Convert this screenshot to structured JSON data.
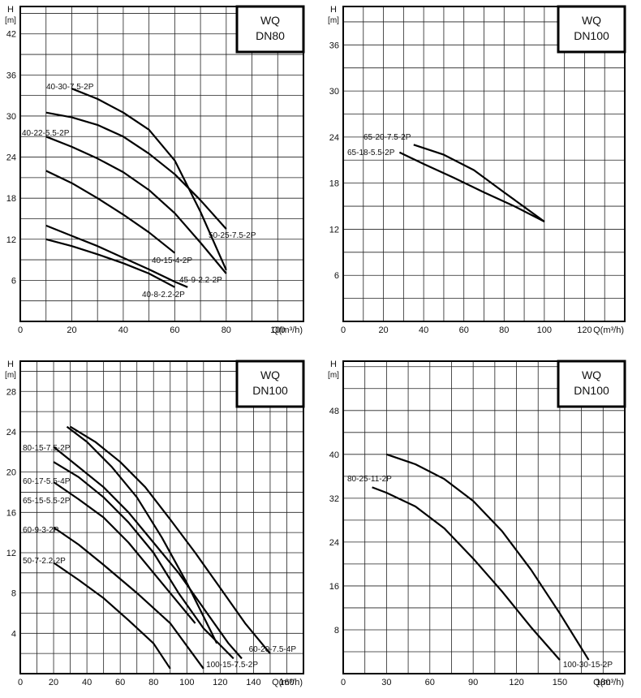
{
  "chart_data": [
    {
      "type": "line",
      "box_title": [
        "WQ",
        "DN80"
      ],
      "ylabel": [
        "H",
        "[m]"
      ],
      "xlabel": "Q(m³/h)",
      "xlim": [
        0,
        110
      ],
      "ylim": [
        0,
        46
      ],
      "x_ticks": [
        0,
        20,
        40,
        60,
        80,
        100
      ],
      "y_ticks": [
        6,
        12,
        18,
        24,
        30,
        36,
        42
      ],
      "series": [
        {
          "name": "40-30-7.5-2P",
          "points": [
            [
              20,
              34
            ],
            [
              30,
              32.5
            ],
            [
              40,
              30.5
            ],
            [
              50,
              28
            ],
            [
              60,
              23.5
            ],
            [
              70,
              16
            ],
            [
              80,
              7.5
            ]
          ]
        },
        {
          "name": "40-22-5.5-2P",
          "points": [
            [
              10,
              30.5
            ],
            [
              20,
              29.8
            ],
            [
              30,
              28.7
            ],
            [
              40,
              27
            ],
            [
              50,
              24.5
            ],
            [
              60,
              21.5
            ],
            [
              70,
              17.7
            ],
            [
              80,
              13.5
            ]
          ]
        },
        {
          "name": "50-25-7.5-2P",
          "points": [
            [
              10,
              27
            ],
            [
              20,
              25.5
            ],
            [
              30,
              23.8
            ],
            [
              40,
              21.8
            ],
            [
              50,
              19.2
            ],
            [
              60,
              15.8
            ],
            [
              70,
              11.5
            ],
            [
              80,
              7
            ]
          ]
        },
        {
          "name": "40-15-4-2P",
          "points": [
            [
              10,
              22
            ],
            [
              20,
              20.2
            ],
            [
              30,
              18
            ],
            [
              40,
              15.6
            ],
            [
              50,
              13
            ],
            [
              60,
              10
            ]
          ]
        },
        {
          "name": "45-9-2.2-2P",
          "points": [
            [
              10,
              14
            ],
            [
              20,
              12.5
            ],
            [
              30,
              11
            ],
            [
              40,
              9.3
            ],
            [
              50,
              7.6
            ],
            [
              60,
              5.8
            ],
            [
              65,
              5
            ]
          ]
        },
        {
          "name": "40-8-2.2-2P",
          "points": [
            [
              10,
              12
            ],
            [
              20,
              11
            ],
            [
              30,
              9.8
            ],
            [
              40,
              8.5
            ],
            [
              50,
              7
            ],
            [
              60,
              5
            ]
          ]
        }
      ],
      "labels": [
        "40-30-7.5-2P",
        "40-22-5.5-2P",
        "50-25-7.5-2P",
        "40-15-4-2P",
        "45-9-2.2-2P",
        "40-8-2.2-2P"
      ]
    },
    {
      "type": "line",
      "box_title": [
        "WQ",
        "DN100"
      ],
      "ylabel": [
        "H",
        "[m]"
      ],
      "xlabel": "Q(m³/h)",
      "xlim": [
        0,
        140
      ],
      "ylim": [
        0,
        41
      ],
      "x_ticks": [
        0,
        20,
        40,
        60,
        80,
        100,
        120
      ],
      "y_ticks": [
        6,
        12,
        18,
        24,
        30,
        36
      ],
      "series": [
        {
          "name": "65-20-7.5-2P",
          "points": [
            [
              35,
              23
            ],
            [
              50,
              21.7
            ],
            [
              65,
              19.7
            ],
            [
              80,
              16.8
            ],
            [
              100,
              13
            ]
          ]
        },
        {
          "name": "65-18-5.5-2P",
          "points": [
            [
              28,
              22
            ],
            [
              40,
              20.5
            ],
            [
              55,
              18.7
            ],
            [
              70,
              16.8
            ],
            [
              85,
              15
            ],
            [
              100,
              13
            ]
          ]
        }
      ],
      "labels": [
        "65-20-7.5-2P",
        "65-18-5.5-2P"
      ]
    },
    {
      "type": "line",
      "box_title": [
        "WQ",
        "DN100"
      ],
      "ylabel": [
        "H",
        "[m]"
      ],
      "xlabel": "Q(m³/h)",
      "xlim": [
        0,
        170
      ],
      "ylim": [
        0,
        31
      ],
      "x_ticks": [
        0,
        20,
        40,
        60,
        80,
        100,
        120,
        140,
        160
      ],
      "y_ticks": [
        4,
        8,
        12,
        16,
        20,
        24,
        28
      ],
      "series": [
        {
          "name": "60-20-7.5-4P",
          "points": [
            [
              30,
              24.5
            ],
            [
              45,
              23
            ],
            [
              60,
              21
            ],
            [
              75,
              18.5
            ],
            [
              90,
              15.3
            ],
            [
              105,
              12
            ],
            [
              120,
              8.5
            ],
            [
              135,
              5
            ],
            [
              150,
              2
            ]
          ]
        },
        {
          "name": "80-15-7.5-2P",
          "points": [
            [
              28,
              24.5
            ],
            [
              40,
              23
            ],
            [
              55,
              20.5
            ],
            [
              70,
              17.5
            ],
            [
              85,
              13.5
            ],
            [
              100,
              9
            ],
            [
              115,
              4
            ],
            [
              118,
              3
            ]
          ]
        },
        {
          "name": "100-15-7.5-2P",
          "points": [
            [
              20,
              22.5
            ],
            [
              35,
              20.5
            ],
            [
              50,
              18.5
            ],
            [
              65,
              16
            ],
            [
              80,
              13
            ],
            [
              95,
              10
            ],
            [
              110,
              6.5
            ],
            [
              125,
              3
            ],
            [
              133,
              1.5
            ]
          ]
        },
        {
          "name": "60-17-5.5-4P",
          "points": [
            [
              20,
              21
            ],
            [
              35,
              19.5
            ],
            [
              50,
              17.5
            ],
            [
              65,
              15
            ],
            [
              80,
              12
            ],
            [
              95,
              8
            ],
            [
              110,
              4.5
            ],
            [
              128,
              1.5
            ]
          ]
        },
        {
          "name": "65-15-5.5-2P",
          "points": [
            [
              20,
              19
            ],
            [
              35,
              17.3
            ],
            [
              50,
              15.5
            ],
            [
              65,
              13
            ],
            [
              80,
              10
            ],
            [
              95,
              7
            ],
            [
              105,
              5
            ]
          ]
        },
        {
          "name": "60-9-3-2P",
          "points": [
            [
              20,
              14.5
            ],
            [
              35,
              12.8
            ],
            [
              50,
              10.8
            ],
            [
              70,
              8
            ],
            [
              90,
              5
            ],
            [
              110,
              0.5
            ]
          ]
        },
        {
          "name": "50-7-2.2-2P",
          "points": [
            [
              20,
              11
            ],
            [
              35,
              9.3
            ],
            [
              50,
              7.5
            ],
            [
              65,
              5.3
            ],
            [
              80,
              3
            ],
            [
              90,
              0.5
            ]
          ]
        }
      ],
      "labels": [
        "80-15-7.5-2P",
        "60-17-5.5-4P",
        "65-15-5.5-2P",
        "60-9-3-2P",
        "50-7-2.2-2P",
        "60-20-7.5-4P",
        "100-15-7.5-2P"
      ]
    },
    {
      "type": "line",
      "box_title": [
        "WQ",
        "DN100"
      ],
      "ylabel": [
        "H",
        "[m]"
      ],
      "xlabel": "Q(m³/h)",
      "xlim": [
        0,
        195
      ],
      "ylim": [
        0,
        57
      ],
      "x_ticks": [
        0,
        30,
        60,
        90,
        120,
        150,
        180
      ],
      "y_ticks": [
        8,
        16,
        24,
        32,
        40,
        48
      ],
      "series": [
        {
          "name": "100-30-15-2P",
          "points": [
            [
              30,
              40
            ],
            [
              50,
              38.2
            ],
            [
              70,
              35.5
            ],
            [
              90,
              31.5
            ],
            [
              110,
              26
            ],
            [
              130,
              19
            ],
            [
              150,
              11
            ],
            [
              170,
              2.5
            ]
          ]
        },
        {
          "name": "80-25-11-2P",
          "points": [
            [
              20,
              34
            ],
            [
              30,
              33
            ],
            [
              50,
              30.5
            ],
            [
              70,
              26.5
            ],
            [
              90,
              21
            ],
            [
              110,
              15
            ],
            [
              130,
              8.5
            ],
            [
              150,
              2.5
            ]
          ]
        }
      ],
      "labels": [
        "80-25-11-2P",
        "100-30-15-2P"
      ]
    }
  ]
}
